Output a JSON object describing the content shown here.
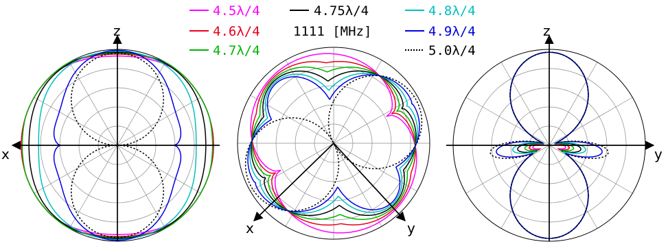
{
  "chart_data": [
    {
      "type": "polar",
      "plane": "xz",
      "axis_labels": {
        "horizontal_left": "x",
        "vertical_top": "z"
      },
      "grid": true,
      "rlim": [
        0,
        1
      ],
      "series": [
        {
          "name": "4.5λ/4",
          "color": "#ff00ff",
          "lobe_shape": "omni",
          "vertical": 0.93,
          "horizontal": 1.0
        },
        {
          "name": "4.6λ/4",
          "color": "#e8001c",
          "lobe_shape": "omni",
          "vertical": 0.95,
          "horizontal": 1.0
        },
        {
          "name": "4.7λ/4",
          "color": "#00b400",
          "lobe_shape": "omni",
          "vertical": 0.96,
          "horizontal": 0.99
        },
        {
          "name": "4.75λ/4",
          "color": "#000000",
          "lobe_shape": "omni",
          "vertical": 0.97,
          "horizontal": 0.92
        },
        {
          "name": "4.8λ/4",
          "color": "#00c0c0",
          "lobe_shape": "omni",
          "vertical": 0.98,
          "horizontal": 0.82
        },
        {
          "name": "4.9λ/4",
          "color": "#0000e0",
          "lobe_shape": "pinched",
          "vertical": 0.99,
          "horizontal": 0.62
        },
        {
          "name": "5.0λ/4",
          "color": "#000000",
          "dashed": true,
          "lobe_shape": "figure-eight",
          "vertical": 0.96,
          "horizontal": 0.0
        }
      ]
    },
    {
      "type": "polar",
      "plane": "oblique",
      "axis_labels": {
        "bottom_left": "x",
        "bottom_right": "y"
      },
      "grid": true,
      "rlim": [
        0,
        1
      ]
    },
    {
      "type": "polar",
      "plane": "yz",
      "axis_labels": {
        "horizontal_right": "y",
        "vertical_top": "z"
      },
      "grid": true,
      "rlim": [
        0,
        1
      ],
      "series": [
        {
          "name": "4.5λ/4",
          "color": "#ff00ff",
          "side_lobe": 0.27
        },
        {
          "name": "4.6λ/4",
          "color": "#e8001c",
          "side_lobe": 0.33
        },
        {
          "name": "4.7λ/4",
          "color": "#00b400",
          "side_lobe": 0.4
        },
        {
          "name": "4.75λ/4",
          "color": "#000000",
          "side_lobe": 0.52
        },
        {
          "name": "4.8λ/4",
          "color": "#00c0c0",
          "side_lobe": 0.6
        },
        {
          "name": "4.9λ/4",
          "color": "#0000e0",
          "side_lobe": 0.87
        },
        {
          "name": "5.0λ/4",
          "color": "#000000",
          "dashed": true,
          "side_lobe": 0.97
        }
      ]
    }
  ],
  "legend": {
    "frequency": "1111 [MHz]",
    "entries": [
      {
        "label": "4.5λ/4",
        "color": "#ff00ff"
      },
      {
        "label": "4.6λ/4",
        "color": "#e8001c"
      },
      {
        "label": "4.7λ/4",
        "color": "#00b400"
      },
      {
        "label": "4.75λ/4",
        "color": "#000000"
      },
      {
        "label": "4.8λ/4",
        "color": "#00c0c0"
      },
      {
        "label": "4.9λ/4",
        "color": "#0000e0"
      },
      {
        "label": "5.0λ/4",
        "color": "#000000",
        "dashed": true
      }
    ]
  }
}
